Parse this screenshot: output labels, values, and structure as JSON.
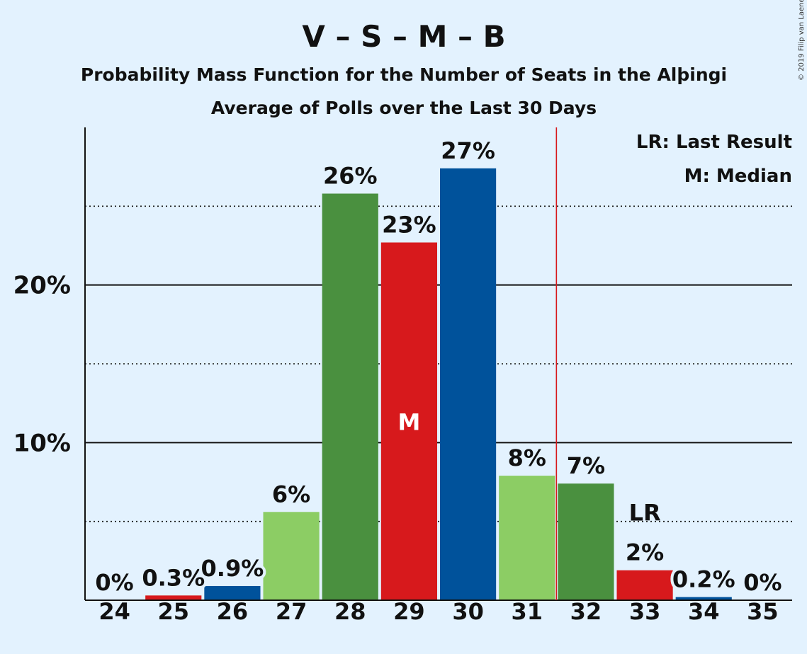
{
  "title": "V – S – M – B",
  "subtitle": "Probability Mass Function for the Number of Seats in the Alþingi",
  "subtitle2": "Average of Polls over the Last 30 Days",
  "copyright": "© 2019 Filip van Laenen",
  "legend": {
    "lr": "LR: Last Result",
    "m": "M: Median"
  },
  "chart_data": {
    "type": "bar",
    "categories": [
      "24",
      "25",
      "26",
      "27",
      "28",
      "29",
      "30",
      "31",
      "32",
      "33",
      "34",
      "35"
    ],
    "values": [
      0,
      0.3,
      0.9,
      5.6,
      25.8,
      22.7,
      27.4,
      7.9,
      7.4,
      1.9,
      0.2,
      0
    ],
    "data_labels": [
      "0%",
      "0.3%",
      "0.9%",
      "6%",
      "26%",
      "23%",
      "27%",
      "8%",
      "7%",
      "2%",
      "0.2%",
      "0%"
    ],
    "colors": [
      "#8ccd64",
      "#d7191c",
      "#00529b",
      "#8ccd64",
      "#4a903f",
      "#d7191c",
      "#00529b",
      "#8ccd64",
      "#4a903f",
      "#d7191c",
      "#00529b",
      "#8ccd64"
    ],
    "ylim": [
      0,
      30
    ],
    "yticks": [
      {
        "value": 10,
        "label": "10%"
      },
      {
        "value": 20,
        "label": "20%"
      }
    ],
    "dotted_gridlines": [
      5,
      15,
      25
    ],
    "median_seat": "29",
    "median_label": "M",
    "last_result_seat": "33",
    "last_result_label": "LR",
    "last_result_line_after": "31",
    "line_color": "#d7191c",
    "grid": true,
    "legend_position": "top-right"
  }
}
